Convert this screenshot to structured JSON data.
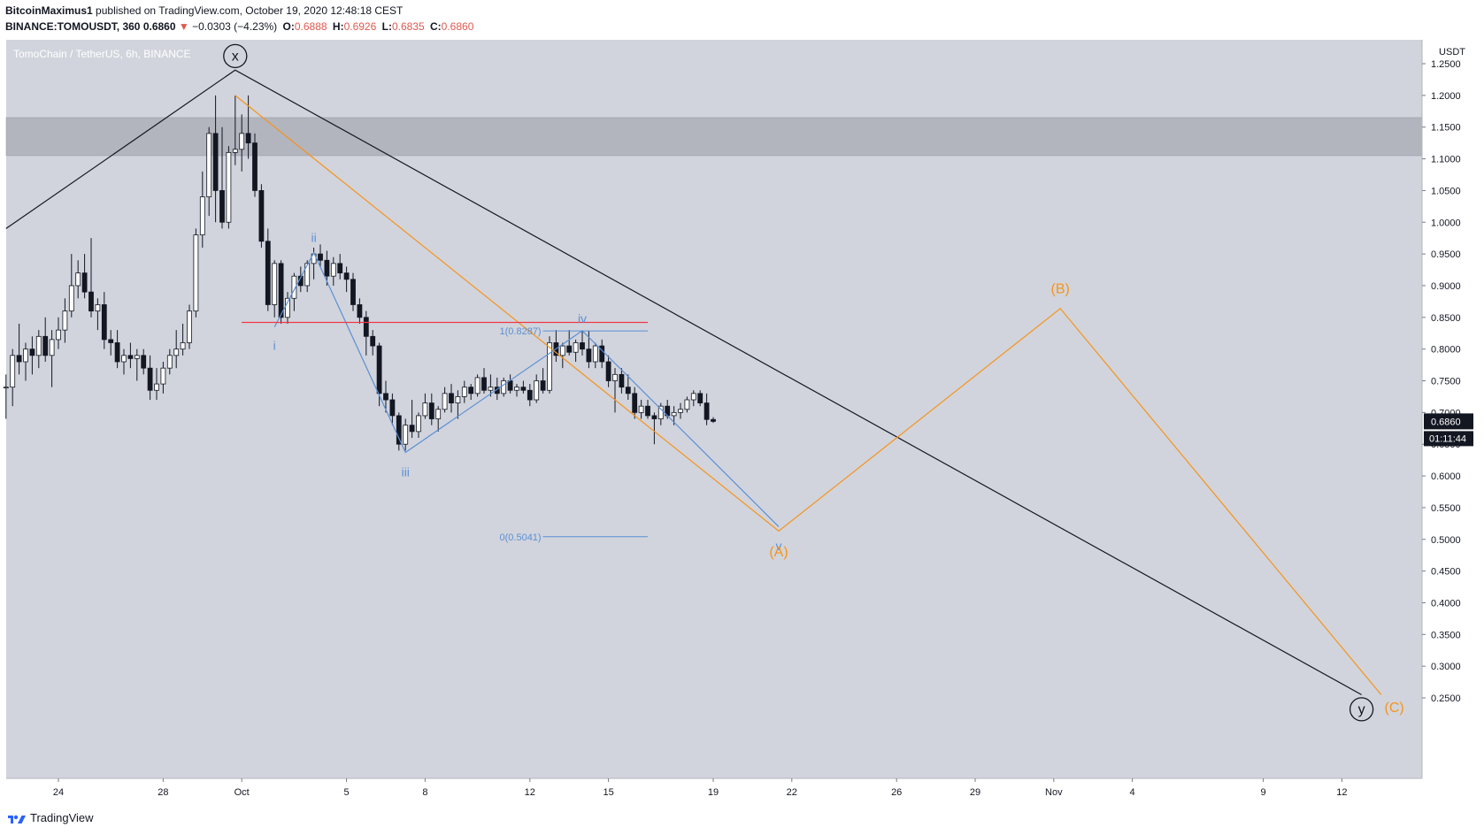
{
  "header": {
    "author": "BitcoinMaximus1",
    "published": "published on TradingView.com, October 19, 2020 12:48:18 CEST",
    "symbol": "BINANCE:TOMOUSDT, 360",
    "last": "0.6860",
    "change": "−0.0303 (−4.23%)",
    "o_label": "O:",
    "o": "0.6888",
    "h_label": "H:",
    "h": "0.6926",
    "l_label": "L:",
    "l": "0.6835",
    "c_label": "C:",
    "c": "0.6860"
  },
  "footer": {
    "brand": "TradingView"
  },
  "colors": {
    "plot_bg": "#d1d4dc",
    "resistance_zone": "#b2b5be",
    "wave_black": "#131722",
    "wave_orange": "#f7931a",
    "wave_blue": "#5b8fd6",
    "red_line": "#f23645",
    "label_bg": "#131722"
  },
  "chart_data": {
    "type": "candlestick",
    "title": "TomoChain / TetherUS, 6h, BINANCE",
    "unit": "USDT",
    "y_ticks": [
      "1.2500",
      "1.2000",
      "1.1500",
      "1.1000",
      "1.0500",
      "1.0000",
      "0.9500",
      "0.9000",
      "0.8500",
      "0.8000",
      "0.7500",
      "0.7000",
      "0.6500",
      "0.6000",
      "0.5500",
      "0.5000",
      "0.4500",
      "0.4000",
      "0.3500",
      "0.3000",
      "0.2500"
    ],
    "ylim": [
      0.21,
      1.29
    ],
    "x_ticks": [
      {
        "label": "24",
        "x": "2020-09-24"
      },
      {
        "label": "28",
        "x": "2020-09-28"
      },
      {
        "label": "Oct",
        "x": "2020-10-01"
      },
      {
        "label": "5",
        "x": "2020-10-05"
      },
      {
        "label": "8",
        "x": "2020-10-08"
      },
      {
        "label": "12",
        "x": "2020-10-12"
      },
      {
        "label": "15",
        "x": "2020-10-15"
      },
      {
        "label": "19",
        "x": "2020-10-19"
      },
      {
        "label": "22",
        "x": "2020-10-22"
      },
      {
        "label": "26",
        "x": "2020-10-26"
      },
      {
        "label": "29",
        "x": "2020-10-29"
      },
      {
        "label": "Nov",
        "x": "2020-11-01"
      },
      {
        "label": "4",
        "x": "2020-11-04"
      },
      {
        "label": "9",
        "x": "2020-11-09"
      },
      {
        "label": "12",
        "x": "2020-11-12"
      }
    ],
    "resistance_zone": [
      1.105,
      1.165
    ],
    "horizontal_line": {
      "y": 0.842,
      "from": "2020-10-01",
      "to": "2020-10-16 12:00"
    },
    "last_price_label": "0.6860",
    "countdown_label": "01:11:44",
    "fib": {
      "levels": [
        {
          "label": "1(0.8287)",
          "value": 0.8287
        },
        {
          "label": "0(0.5041)",
          "value": 0.5041
        }
      ],
      "from": "2020-10-12 12:00",
      "to": "2020-10-16 12:00"
    },
    "candles": [
      {
        "t": "2020-09-22 00:00",
        "o": 0.74,
        "h": 0.76,
        "l": 0.69,
        "c": 0.74
      },
      {
        "t": "2020-09-22 06:00",
        "o": 0.74,
        "h": 0.8,
        "l": 0.71,
        "c": 0.79
      },
      {
        "t": "2020-09-22 12:00",
        "o": 0.79,
        "h": 0.84,
        "l": 0.76,
        "c": 0.78
      },
      {
        "t": "2020-09-22 18:00",
        "o": 0.78,
        "h": 0.81,
        "l": 0.75,
        "c": 0.8
      },
      {
        "t": "2020-09-23 00:00",
        "o": 0.8,
        "h": 0.82,
        "l": 0.76,
        "c": 0.79
      },
      {
        "t": "2020-09-23 06:00",
        "o": 0.79,
        "h": 0.83,
        "l": 0.77,
        "c": 0.82
      },
      {
        "t": "2020-09-23 12:00",
        "o": 0.82,
        "h": 0.85,
        "l": 0.78,
        "c": 0.79
      },
      {
        "t": "2020-09-23 18:00",
        "o": 0.79,
        "h": 0.83,
        "l": 0.74,
        "c": 0.815
      },
      {
        "t": "2020-09-24 00:00",
        "o": 0.815,
        "h": 0.85,
        "l": 0.8,
        "c": 0.83
      },
      {
        "t": "2020-09-24 06:00",
        "o": 0.83,
        "h": 0.88,
        "l": 0.81,
        "c": 0.86
      },
      {
        "t": "2020-09-24 12:00",
        "o": 0.86,
        "h": 0.95,
        "l": 0.85,
        "c": 0.9
      },
      {
        "t": "2020-09-24 18:00",
        "o": 0.9,
        "h": 0.94,
        "l": 0.88,
        "c": 0.92
      },
      {
        "t": "2020-09-25 00:00",
        "o": 0.92,
        "h": 0.95,
        "l": 0.88,
        "c": 0.89
      },
      {
        "t": "2020-09-25 06:00",
        "o": 0.89,
        "h": 0.975,
        "l": 0.85,
        "c": 0.86
      },
      {
        "t": "2020-09-25 12:00",
        "o": 0.86,
        "h": 0.88,
        "l": 0.83,
        "c": 0.87
      },
      {
        "t": "2020-09-25 18:00",
        "o": 0.87,
        "h": 0.89,
        "l": 0.8,
        "c": 0.815
      },
      {
        "t": "2020-09-26 00:00",
        "o": 0.815,
        "h": 0.83,
        "l": 0.79,
        "c": 0.81
      },
      {
        "t": "2020-09-26 06:00",
        "o": 0.81,
        "h": 0.83,
        "l": 0.77,
        "c": 0.78
      },
      {
        "t": "2020-09-26 12:00",
        "o": 0.78,
        "h": 0.8,
        "l": 0.76,
        "c": 0.79
      },
      {
        "t": "2020-09-26 18:00",
        "o": 0.79,
        "h": 0.81,
        "l": 0.77,
        "c": 0.785
      },
      {
        "t": "2020-09-27 00:00",
        "o": 0.785,
        "h": 0.8,
        "l": 0.75,
        "c": 0.79
      },
      {
        "t": "2020-09-27 06:00",
        "o": 0.79,
        "h": 0.8,
        "l": 0.76,
        "c": 0.77
      },
      {
        "t": "2020-09-27 12:00",
        "o": 0.77,
        "h": 0.79,
        "l": 0.72,
        "c": 0.735
      },
      {
        "t": "2020-09-27 18:00",
        "o": 0.735,
        "h": 0.77,
        "l": 0.72,
        "c": 0.745
      },
      {
        "t": "2020-09-28 00:00",
        "o": 0.745,
        "h": 0.78,
        "l": 0.73,
        "c": 0.77
      },
      {
        "t": "2020-09-28 06:00",
        "o": 0.77,
        "h": 0.8,
        "l": 0.76,
        "c": 0.79
      },
      {
        "t": "2020-09-28 12:00",
        "o": 0.79,
        "h": 0.83,
        "l": 0.77,
        "c": 0.8
      },
      {
        "t": "2020-09-28 18:00",
        "o": 0.8,
        "h": 0.84,
        "l": 0.79,
        "c": 0.81
      },
      {
        "t": "2020-09-29 00:00",
        "o": 0.81,
        "h": 0.87,
        "l": 0.8,
        "c": 0.86
      },
      {
        "t": "2020-09-29 06:00",
        "o": 0.86,
        "h": 0.99,
        "l": 0.85,
        "c": 0.98
      },
      {
        "t": "2020-09-29 12:00",
        "o": 0.98,
        "h": 1.08,
        "l": 0.96,
        "c": 1.04
      },
      {
        "t": "2020-09-29 18:00",
        "o": 1.04,
        "h": 1.15,
        "l": 1.01,
        "c": 1.14
      },
      {
        "t": "2020-09-30 00:00",
        "o": 1.14,
        "h": 1.2,
        "l": 1.0,
        "c": 1.05
      },
      {
        "t": "2020-09-30 06:00",
        "o": 1.05,
        "h": 1.15,
        "l": 0.99,
        "c": 1.0
      },
      {
        "t": "2020-09-30 12:00",
        "o": 1.0,
        "h": 1.12,
        "l": 0.99,
        "c": 1.11
      },
      {
        "t": "2020-09-30 18:00",
        "o": 1.11,
        "h": 1.2,
        "l": 1.09,
        "c": 1.115
      },
      {
        "t": "2020-10-01 00:00",
        "o": 1.115,
        "h": 1.17,
        "l": 1.08,
        "c": 1.14
      },
      {
        "t": "2020-10-01 06:00",
        "o": 1.14,
        "h": 1.2,
        "l": 1.1,
        "c": 1.125
      },
      {
        "t": "2020-10-01 12:00",
        "o": 1.125,
        "h": 1.14,
        "l": 1.04,
        "c": 1.05
      },
      {
        "t": "2020-10-01 18:00",
        "o": 1.05,
        "h": 1.06,
        "l": 0.96,
        "c": 0.97
      },
      {
        "t": "2020-10-02 00:00",
        "o": 0.97,
        "h": 0.99,
        "l": 0.86,
        "c": 0.87
      },
      {
        "t": "2020-10-02 06:00",
        "o": 0.87,
        "h": 0.94,
        "l": 0.85,
        "c": 0.935
      },
      {
        "t": "2020-10-02 12:00",
        "o": 0.935,
        "h": 0.94,
        "l": 0.84,
        "c": 0.85
      },
      {
        "t": "2020-10-02 18:00",
        "o": 0.85,
        "h": 0.89,
        "l": 0.84,
        "c": 0.88
      },
      {
        "t": "2020-10-03 00:00",
        "o": 0.88,
        "h": 0.92,
        "l": 0.86,
        "c": 0.915
      },
      {
        "t": "2020-10-03 06:00",
        "o": 0.915,
        "h": 0.93,
        "l": 0.89,
        "c": 0.9
      },
      {
        "t": "2020-10-03 12:00",
        "o": 0.9,
        "h": 0.94,
        "l": 0.89,
        "c": 0.935
      },
      {
        "t": "2020-10-03 18:00",
        "o": 0.935,
        "h": 0.96,
        "l": 0.91,
        "c": 0.95
      },
      {
        "t": "2020-10-04 00:00",
        "o": 0.95,
        "h": 0.965,
        "l": 0.93,
        "c": 0.94
      },
      {
        "t": "2020-10-04 06:00",
        "o": 0.94,
        "h": 0.955,
        "l": 0.9,
        "c": 0.915
      },
      {
        "t": "2020-10-04 12:00",
        "o": 0.915,
        "h": 0.945,
        "l": 0.9,
        "c": 0.935
      },
      {
        "t": "2020-10-04 18:00",
        "o": 0.935,
        "h": 0.95,
        "l": 0.91,
        "c": 0.92
      },
      {
        "t": "2020-10-05 00:00",
        "o": 0.92,
        "h": 0.93,
        "l": 0.89,
        "c": 0.91
      },
      {
        "t": "2020-10-05 06:00",
        "o": 0.91,
        "h": 0.92,
        "l": 0.86,
        "c": 0.87
      },
      {
        "t": "2020-10-05 12:00",
        "o": 0.87,
        "h": 0.88,
        "l": 0.84,
        "c": 0.85
      },
      {
        "t": "2020-10-05 18:00",
        "o": 0.85,
        "h": 0.86,
        "l": 0.79,
        "c": 0.82
      },
      {
        "t": "2020-10-06 00:00",
        "o": 0.82,
        "h": 0.83,
        "l": 0.79,
        "c": 0.805
      },
      {
        "t": "2020-10-06 06:00",
        "o": 0.805,
        "h": 0.81,
        "l": 0.71,
        "c": 0.73
      },
      {
        "t": "2020-10-06 12:00",
        "o": 0.73,
        "h": 0.75,
        "l": 0.7,
        "c": 0.72
      },
      {
        "t": "2020-10-06 18:00",
        "o": 0.72,
        "h": 0.73,
        "l": 0.68,
        "c": 0.695
      },
      {
        "t": "2020-10-07 00:00",
        "o": 0.695,
        "h": 0.7,
        "l": 0.64,
        "c": 0.65
      },
      {
        "t": "2020-10-07 06:00",
        "o": 0.65,
        "h": 0.69,
        "l": 0.64,
        "c": 0.68
      },
      {
        "t": "2020-10-07 12:00",
        "o": 0.68,
        "h": 0.72,
        "l": 0.66,
        "c": 0.67
      },
      {
        "t": "2020-10-07 18:00",
        "o": 0.67,
        "h": 0.7,
        "l": 0.66,
        "c": 0.695
      },
      {
        "t": "2020-10-08 00:00",
        "o": 0.695,
        "h": 0.73,
        "l": 0.69,
        "c": 0.715
      },
      {
        "t": "2020-10-08 06:00",
        "o": 0.715,
        "h": 0.73,
        "l": 0.68,
        "c": 0.69
      },
      {
        "t": "2020-10-08 12:00",
        "o": 0.69,
        "h": 0.71,
        "l": 0.67,
        "c": 0.705
      },
      {
        "t": "2020-10-08 18:00",
        "o": 0.705,
        "h": 0.74,
        "l": 0.7,
        "c": 0.73
      },
      {
        "t": "2020-10-09 00:00",
        "o": 0.73,
        "h": 0.745,
        "l": 0.7,
        "c": 0.715
      },
      {
        "t": "2020-10-09 06:00",
        "o": 0.715,
        "h": 0.735,
        "l": 0.69,
        "c": 0.725
      },
      {
        "t": "2020-10-09 12:00",
        "o": 0.725,
        "h": 0.75,
        "l": 0.715,
        "c": 0.74
      },
      {
        "t": "2020-10-09 18:00",
        "o": 0.74,
        "h": 0.745,
        "l": 0.72,
        "c": 0.73
      },
      {
        "t": "2020-10-10 00:00",
        "o": 0.73,
        "h": 0.76,
        "l": 0.725,
        "c": 0.755
      },
      {
        "t": "2020-10-10 06:00",
        "o": 0.755,
        "h": 0.77,
        "l": 0.73,
        "c": 0.735
      },
      {
        "t": "2020-10-10 12:00",
        "o": 0.735,
        "h": 0.76,
        "l": 0.725,
        "c": 0.74
      },
      {
        "t": "2020-10-10 18:00",
        "o": 0.74,
        "h": 0.755,
        "l": 0.72,
        "c": 0.73
      },
      {
        "t": "2020-10-11 00:00",
        "o": 0.73,
        "h": 0.755,
        "l": 0.725,
        "c": 0.75
      },
      {
        "t": "2020-10-11 06:00",
        "o": 0.75,
        "h": 0.76,
        "l": 0.73,
        "c": 0.735
      },
      {
        "t": "2020-10-11 12:00",
        "o": 0.735,
        "h": 0.745,
        "l": 0.725,
        "c": 0.74
      },
      {
        "t": "2020-10-11 18:00",
        "o": 0.74,
        "h": 0.75,
        "l": 0.73,
        "c": 0.735
      },
      {
        "t": "2020-10-12 00:00",
        "o": 0.735,
        "h": 0.745,
        "l": 0.71,
        "c": 0.72
      },
      {
        "t": "2020-10-12 06:00",
        "o": 0.72,
        "h": 0.76,
        "l": 0.715,
        "c": 0.75
      },
      {
        "t": "2020-10-12 12:00",
        "o": 0.75,
        "h": 0.77,
        "l": 0.73,
        "c": 0.735
      },
      {
        "t": "2020-10-12 18:00",
        "o": 0.735,
        "h": 0.82,
        "l": 0.73,
        "c": 0.81
      },
      {
        "t": "2020-10-13 00:00",
        "o": 0.81,
        "h": 0.83,
        "l": 0.78,
        "c": 0.79
      },
      {
        "t": "2020-10-13 06:00",
        "o": 0.79,
        "h": 0.81,
        "l": 0.77,
        "c": 0.805
      },
      {
        "t": "2020-10-13 12:00",
        "o": 0.805,
        "h": 0.83,
        "l": 0.79,
        "c": 0.795
      },
      {
        "t": "2020-10-13 18:00",
        "o": 0.795,
        "h": 0.815,
        "l": 0.78,
        "c": 0.81
      },
      {
        "t": "2020-10-14 00:00",
        "o": 0.81,
        "h": 0.829,
        "l": 0.79,
        "c": 0.8
      },
      {
        "t": "2020-10-14 06:00",
        "o": 0.8,
        "h": 0.829,
        "l": 0.77,
        "c": 0.78
      },
      {
        "t": "2020-10-14 12:00",
        "o": 0.78,
        "h": 0.81,
        "l": 0.77,
        "c": 0.805
      },
      {
        "t": "2020-10-14 18:00",
        "o": 0.805,
        "h": 0.815,
        "l": 0.77,
        "c": 0.78
      },
      {
        "t": "2020-10-15 00:00",
        "o": 0.78,
        "h": 0.79,
        "l": 0.74,
        "c": 0.75
      },
      {
        "t": "2020-10-15 06:00",
        "o": 0.75,
        "h": 0.77,
        "l": 0.7,
        "c": 0.76
      },
      {
        "t": "2020-10-15 12:00",
        "o": 0.76,
        "h": 0.77,
        "l": 0.73,
        "c": 0.74
      },
      {
        "t": "2020-10-15 18:00",
        "o": 0.74,
        "h": 0.76,
        "l": 0.72,
        "c": 0.73
      },
      {
        "t": "2020-10-16 00:00",
        "o": 0.73,
        "h": 0.74,
        "l": 0.69,
        "c": 0.7
      },
      {
        "t": "2020-10-16 06:00",
        "o": 0.7,
        "h": 0.72,
        "l": 0.69,
        "c": 0.71
      },
      {
        "t": "2020-10-16 12:00",
        "o": 0.71,
        "h": 0.72,
        "l": 0.69,
        "c": 0.695
      },
      {
        "t": "2020-10-16 18:00",
        "o": 0.695,
        "h": 0.7,
        "l": 0.65,
        "c": 0.69
      },
      {
        "t": "2020-10-17 00:00",
        "o": 0.69,
        "h": 0.715,
        "l": 0.68,
        "c": 0.71
      },
      {
        "t": "2020-10-17 06:00",
        "o": 0.71,
        "h": 0.72,
        "l": 0.69,
        "c": 0.695
      },
      {
        "t": "2020-10-17 12:00",
        "o": 0.695,
        "h": 0.71,
        "l": 0.68,
        "c": 0.7
      },
      {
        "t": "2020-10-17 18:00",
        "o": 0.7,
        "h": 0.715,
        "l": 0.69,
        "c": 0.705
      },
      {
        "t": "2020-10-18 00:00",
        "o": 0.705,
        "h": 0.725,
        "l": 0.7,
        "c": 0.72
      },
      {
        "t": "2020-10-18 06:00",
        "o": 0.72,
        "h": 0.735,
        "l": 0.71,
        "c": 0.73
      },
      {
        "t": "2020-10-18 12:00",
        "o": 0.73,
        "h": 0.735,
        "l": 0.71,
        "c": 0.715
      },
      {
        "t": "2020-10-18 18:00",
        "o": 0.715,
        "h": 0.73,
        "l": 0.68,
        "c": 0.689
      },
      {
        "t": "2020-10-19 00:00",
        "o": 0.689,
        "h": 0.6926,
        "l": 0.6835,
        "c": 0.686
      }
    ],
    "waves": [
      {
        "name": "x-y",
        "color": "black",
        "points": [
          [
            "2020-09-22 00:00",
            0.99
          ],
          [
            "2020-09-30 18:00",
            1.24
          ],
          [
            "2020-11-12 18:00",
            0.255
          ]
        ]
      },
      {
        "name": "A-B-C",
        "color": "orange",
        "points": [
          [
            "2020-09-30 18:00",
            1.2
          ],
          [
            "2020-10-21 12:00",
            0.513
          ],
          [
            "2020-11-01 06:00",
            0.864
          ],
          [
            "2020-11-13 12:00",
            0.255
          ]
        ]
      },
      {
        "name": "i-v",
        "color": "blue",
        "points": [
          [
            "2020-10-02 06:00",
            0.835
          ],
          [
            "2020-10-03 18:00",
            0.952
          ],
          [
            "2020-10-07 06:00",
            0.637
          ],
          [
            "2020-10-14 00:00",
            0.829
          ],
          [
            "2020-10-21 12:00",
            0.52
          ]
        ]
      }
    ],
    "annotations": [
      {
        "text": "x",
        "t": "2020-09-30 18:00",
        "y": 1.262,
        "color": "black",
        "circle": true
      },
      {
        "text": "y",
        "t": "2020-11-12 18:00",
        "y": 0.232,
        "color": "black",
        "circle": true
      },
      {
        "text": "i",
        "t": "2020-10-02 06:00",
        "y": 0.806,
        "color": "blue"
      },
      {
        "text": "ii",
        "t": "2020-10-03 18:00",
        "y": 0.976,
        "color": "blue"
      },
      {
        "text": "iii",
        "t": "2020-10-07 06:00",
        "y": 0.606,
        "color": "blue"
      },
      {
        "text": "iv",
        "t": "2020-10-14 00:00",
        "y": 0.848,
        "color": "blue"
      },
      {
        "text": "v",
        "t": "2020-10-21 12:00",
        "y": 0.49,
        "color": "blue"
      },
      {
        "text": "(A)",
        "t": "2020-10-21 12:00",
        "y": 0.48,
        "color": "orange"
      },
      {
        "text": "(B)",
        "t": "2020-11-01 06:00",
        "y": 0.895,
        "color": "orange"
      },
      {
        "text": "(C)",
        "t": "2020-11-14 00:00",
        "y": 0.235,
        "color": "orange"
      }
    ]
  }
}
